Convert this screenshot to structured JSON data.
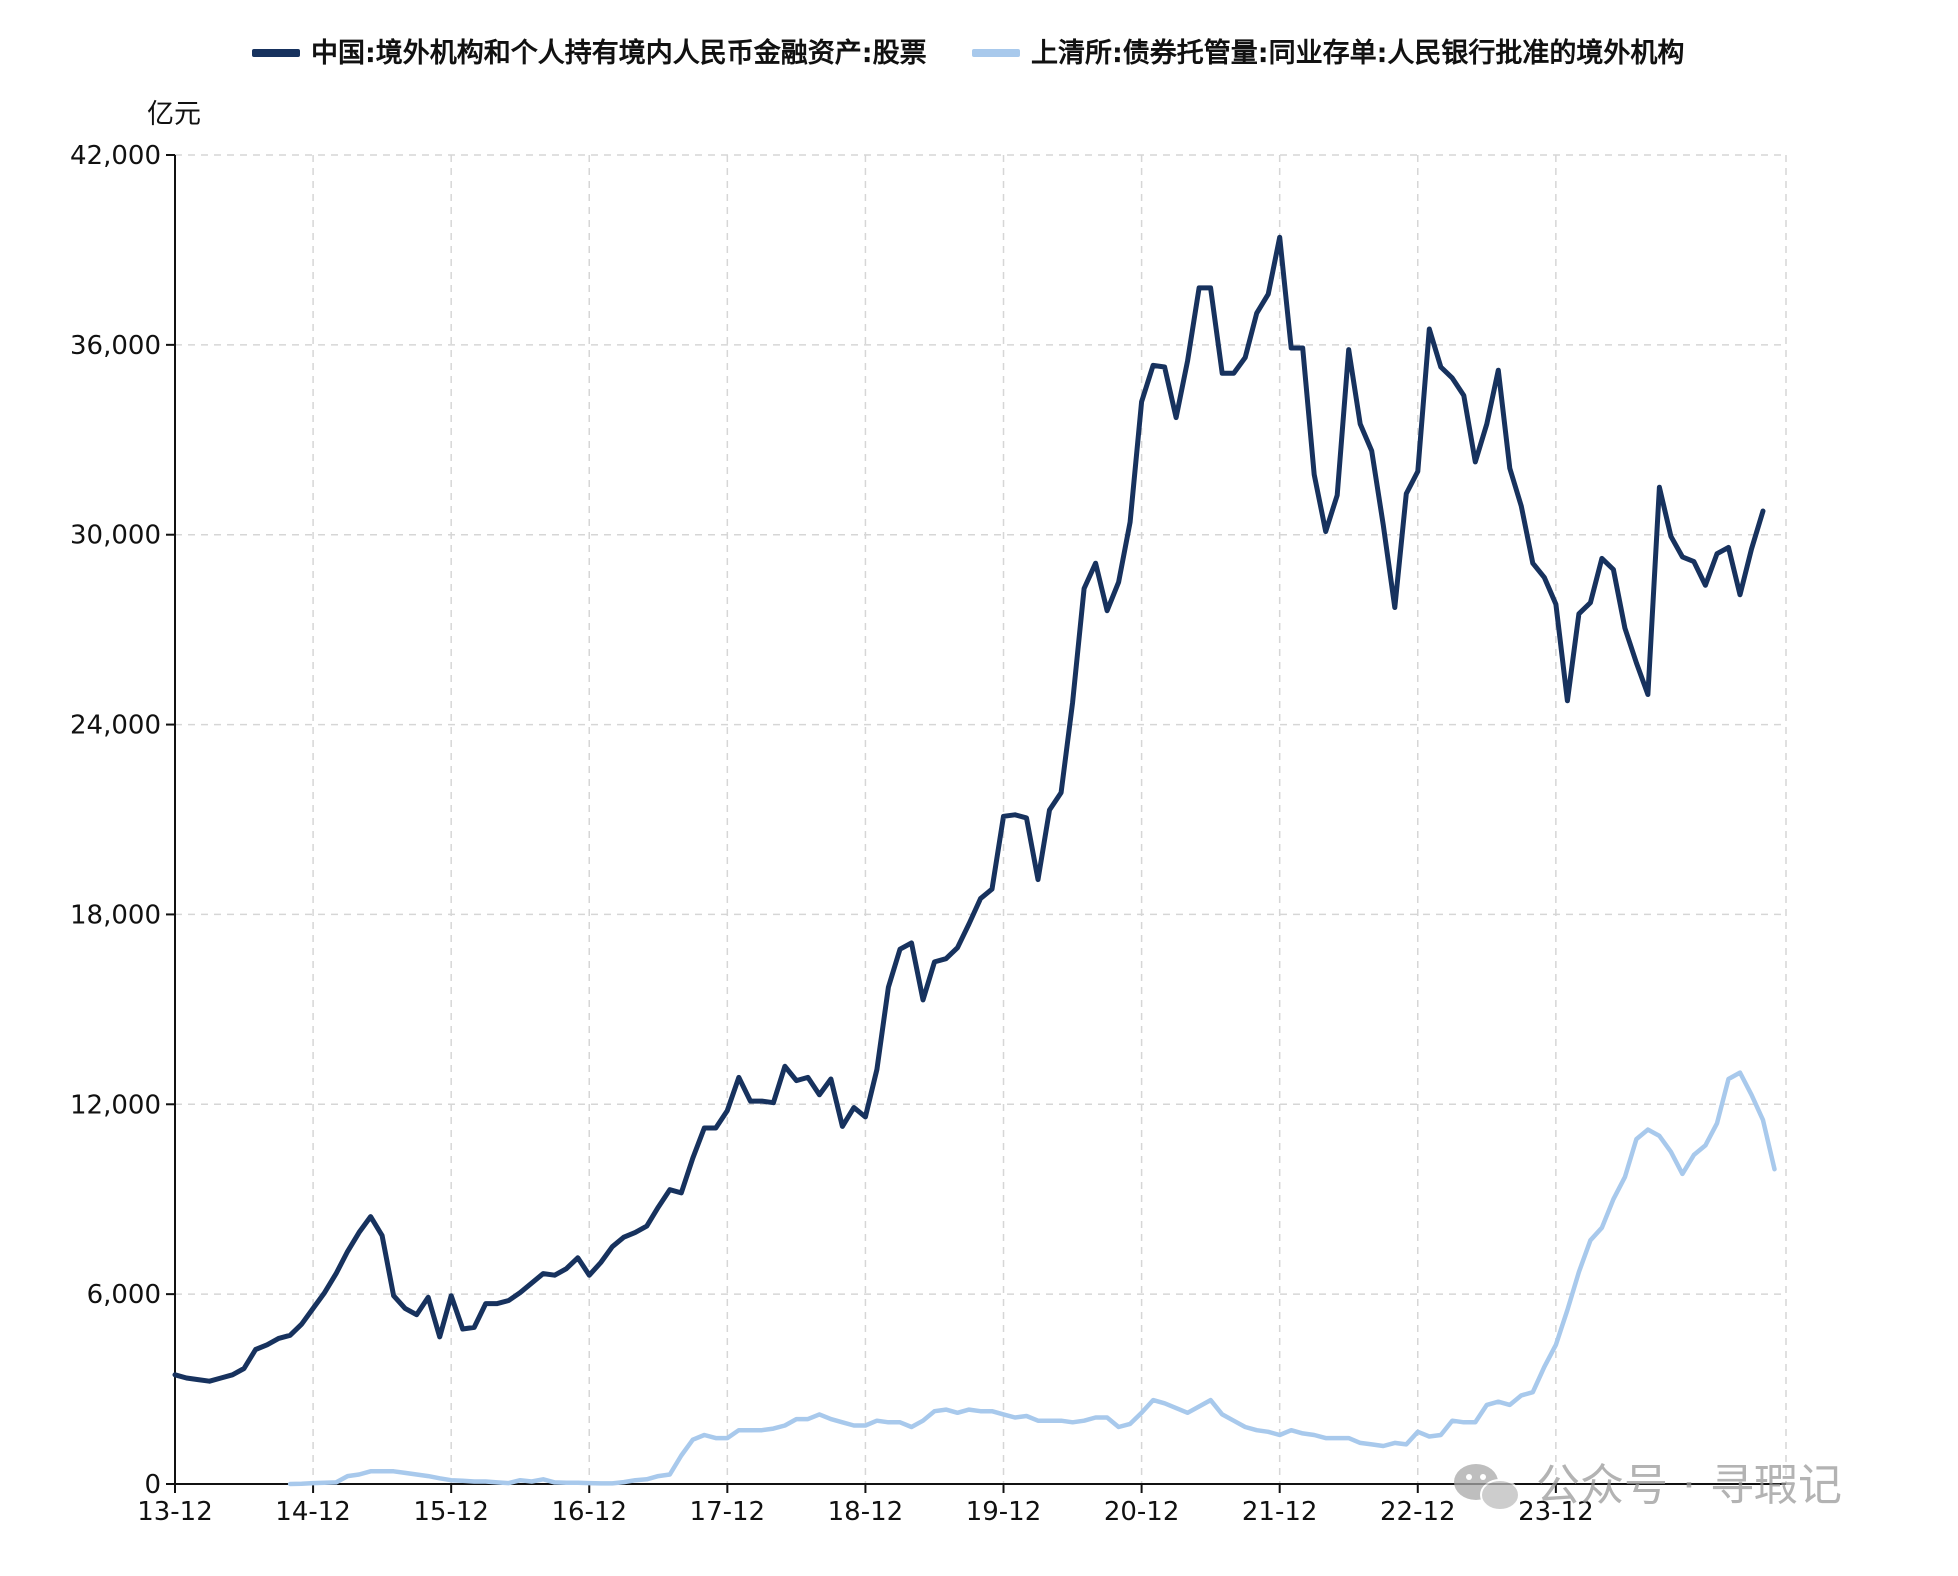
{
  "chart_data": {
    "type": "line",
    "ylabel": "亿元",
    "ylim": [
      0,
      42000
    ],
    "y_ticks": [
      0,
      6000,
      12000,
      18000,
      24000,
      30000,
      36000,
      42000
    ],
    "y_tick_labels": [
      "0",
      "6,000",
      "12,000",
      "18,000",
      "24,000",
      "30,000",
      "36,000",
      "42,000"
    ],
    "x_ticks": [
      "2013-12",
      "2014-12",
      "2015-12",
      "2016-12",
      "2017-12",
      "2018-12",
      "2019-12",
      "2020-12",
      "2021-12",
      "2022-12",
      "2023-12"
    ],
    "x_tick_labels": [
      "13-12",
      "14-12",
      "15-12",
      "16-12",
      "17-12",
      "18-12",
      "19-12",
      "20-12",
      "21-12",
      "22-12",
      "23-12"
    ],
    "x_range": [
      "2013-12",
      "2025-08"
    ],
    "grid": true,
    "legend_position": "top",
    "series": [
      {
        "name": "中国:境外机构和个人持有境内人民币金融资产:股票",
        "color": "#17325e",
        "points": [
          [
            "2013-12",
            3450
          ],
          [
            "2014-01",
            3350
          ],
          [
            "2014-02",
            3300
          ],
          [
            "2014-03",
            3250
          ],
          [
            "2014-04",
            3350
          ],
          [
            "2014-05",
            3450
          ],
          [
            "2014-06",
            3650
          ],
          [
            "2014-07",
            4250
          ],
          [
            "2014-08",
            4400
          ],
          [
            "2014-09",
            4600
          ],
          [
            "2014-10",
            4700
          ],
          [
            "2014-11",
            5050
          ],
          [
            "2014-12",
            5550
          ],
          [
            "2015-01",
            6050
          ],
          [
            "2015-02",
            6650
          ],
          [
            "2015-03",
            7350
          ],
          [
            "2015-04",
            7950
          ],
          [
            "2015-05",
            8450
          ],
          [
            "2015-06",
            7850
          ],
          [
            "2015-07",
            5950
          ],
          [
            "2015-08",
            5550
          ],
          [
            "2015-09",
            5350
          ],
          [
            "2015-10",
            5900
          ],
          [
            "2015-11",
            4650
          ],
          [
            "2015-12",
            5950
          ],
          [
            "2016-01",
            4900
          ],
          [
            "2016-02",
            4950
          ],
          [
            "2016-03",
            5700
          ],
          [
            "2016-04",
            5700
          ],
          [
            "2016-05",
            5800
          ],
          [
            "2016-06",
            6050
          ],
          [
            "2016-07",
            6350
          ],
          [
            "2016-08",
            6650
          ],
          [
            "2016-09",
            6600
          ],
          [
            "2016-10",
            6800
          ],
          [
            "2016-11",
            7150
          ],
          [
            "2016-12",
            6600
          ],
          [
            "2017-01",
            7000
          ],
          [
            "2017-02",
            7500
          ],
          [
            "2017-03",
            7800
          ],
          [
            "2017-04",
            7950
          ],
          [
            "2017-05",
            8150
          ],
          [
            "2017-06",
            8750
          ],
          [
            "2017-07",
            9300
          ],
          [
            "2017-08",
            9200
          ],
          [
            "2017-09",
            10300
          ],
          [
            "2017-10",
            11250
          ],
          [
            "2017-11",
            11250
          ],
          [
            "2017-12",
            11800
          ],
          [
            "2018-01",
            12850
          ],
          [
            "2018-02",
            12100
          ],
          [
            "2018-03",
            12100
          ],
          [
            "2018-04",
            12050
          ],
          [
            "2018-05",
            13200
          ],
          [
            "2018-06",
            12750
          ],
          [
            "2018-07",
            12850
          ],
          [
            "2018-08",
            12300
          ],
          [
            "2018-09",
            12800
          ],
          [
            "2018-10",
            11300
          ],
          [
            "2018-11",
            11900
          ],
          [
            "2018-12",
            11600
          ],
          [
            "2019-01",
            13100
          ],
          [
            "2019-02",
            15700
          ],
          [
            "2019-03",
            16900
          ],
          [
            "2019-04",
            17100
          ],
          [
            "2019-05",
            15300
          ],
          [
            "2019-06",
            16500
          ],
          [
            "2019-07",
            16600
          ],
          [
            "2019-08",
            16950
          ],
          [
            "2019-09",
            17700
          ],
          [
            "2019-10",
            18500
          ],
          [
            "2019-11",
            18800
          ],
          [
            "2019-12",
            21100
          ],
          [
            "2020-01",
            21150
          ],
          [
            "2020-02",
            21050
          ],
          [
            "2020-03",
            19100
          ],
          [
            "2020-04",
            21300
          ],
          [
            "2020-05",
            21850
          ],
          [
            "2020-06",
            24700
          ],
          [
            "2020-07",
            28300
          ],
          [
            "2020-08",
            29100
          ],
          [
            "2020-09",
            27600
          ],
          [
            "2020-10",
            28500
          ],
          [
            "2020-11",
            30400
          ],
          [
            "2020-12",
            34200
          ],
          [
            "2021-01",
            35350
          ],
          [
            "2021-02",
            35300
          ],
          [
            "2021-03",
            33700
          ],
          [
            "2021-04",
            35500
          ],
          [
            "2021-05",
            37800
          ],
          [
            "2021-06",
            37800
          ],
          [
            "2021-07",
            35100
          ],
          [
            "2021-08",
            35100
          ],
          [
            "2021-09",
            35600
          ],
          [
            "2021-10",
            37000
          ],
          [
            "2021-11",
            37600
          ],
          [
            "2021-12",
            39400
          ],
          [
            "2022-01",
            35900
          ],
          [
            "2022-02",
            35900
          ],
          [
            "2022-03",
            31900
          ],
          [
            "2022-04",
            30100
          ],
          [
            "2022-05",
            31250
          ],
          [
            "2022-06",
            35850
          ],
          [
            "2022-07",
            33500
          ],
          [
            "2022-08",
            32650
          ],
          [
            "2022-09",
            30300
          ],
          [
            "2022-10",
            27700
          ],
          [
            "2022-11",
            31300
          ],
          [
            "2022-12",
            32000
          ],
          [
            "2023-01",
            36500
          ],
          [
            "2023-02",
            35300
          ],
          [
            "2023-03",
            34950
          ],
          [
            "2023-04",
            34400
          ],
          [
            "2023-05",
            32300
          ],
          [
            "2023-06",
            33500
          ],
          [
            "2023-07",
            35200
          ],
          [
            "2023-08",
            32100
          ],
          [
            "2023-09",
            30900
          ],
          [
            "2023-10",
            29100
          ],
          [
            "2023-11",
            28650
          ],
          [
            "2023-12",
            27800
          ],
          [
            "2024-01",
            24750
          ],
          [
            "2024-02",
            27500
          ],
          [
            "2024-03",
            27850
          ],
          [
            "2024-04",
            29250
          ],
          [
            "2024-05",
            28900
          ],
          [
            "2024-06",
            27050
          ],
          [
            "2024-07",
            25950
          ],
          [
            "2024-08",
            24950
          ],
          [
            "2024-09",
            31500
          ],
          [
            "2024-10",
            29950
          ],
          [
            "2024-11",
            29300
          ],
          [
            "2024-12",
            29150
          ],
          [
            "2025-01",
            28400
          ],
          [
            "2025-02",
            29400
          ],
          [
            "2025-03",
            29600
          ],
          [
            "2025-04",
            28100
          ],
          [
            "2025-05",
            29550
          ],
          [
            "2025-06",
            30750
          ]
        ]
      },
      {
        "name": "上清所:债券托管量:同业存单:人民银行批准的境外机构",
        "color": "#a8c9ec",
        "points": [
          [
            "2014-10",
            0
          ],
          [
            "2014-11",
            10
          ],
          [
            "2014-12",
            30
          ],
          [
            "2015-01",
            40
          ],
          [
            "2015-02",
            50
          ],
          [
            "2015-03",
            250
          ],
          [
            "2015-04",
            300
          ],
          [
            "2015-05",
            400
          ],
          [
            "2015-06",
            400
          ],
          [
            "2015-07",
            400
          ],
          [
            "2015-08",
            350
          ],
          [
            "2015-09",
            300
          ],
          [
            "2015-10",
            250
          ],
          [
            "2015-11",
            180
          ],
          [
            "2015-12",
            120
          ],
          [
            "2016-01",
            100
          ],
          [
            "2016-02",
            80
          ],
          [
            "2016-03",
            80
          ],
          [
            "2016-04",
            50
          ],
          [
            "2016-05",
            30
          ],
          [
            "2016-06",
            120
          ],
          [
            "2016-07",
            80
          ],
          [
            "2016-08",
            150
          ],
          [
            "2016-09",
            50
          ],
          [
            "2016-10",
            40
          ],
          [
            "2016-11",
            40
          ],
          [
            "2016-12",
            30
          ],
          [
            "2017-01",
            20
          ],
          [
            "2017-02",
            20
          ],
          [
            "2017-03",
            60
          ],
          [
            "2017-04",
            120
          ],
          [
            "2017-05",
            150
          ],
          [
            "2017-06",
            250
          ],
          [
            "2017-07",
            300
          ],
          [
            "2017-08",
            900
          ],
          [
            "2017-09",
            1400
          ],
          [
            "2017-10",
            1550
          ],
          [
            "2017-11",
            1450
          ],
          [
            "2017-12",
            1450
          ],
          [
            "2018-01",
            1700
          ],
          [
            "2018-02",
            1700
          ],
          [
            "2018-03",
            1700
          ],
          [
            "2018-04",
            1750
          ],
          [
            "2018-05",
            1850
          ],
          [
            "2018-06",
            2050
          ],
          [
            "2018-07",
            2050
          ],
          [
            "2018-08",
            2200
          ],
          [
            "2018-09",
            2050
          ],
          [
            "2018-10",
            1950
          ],
          [
            "2018-11",
            1850
          ],
          [
            "2018-12",
            1850
          ],
          [
            "2019-01",
            2000
          ],
          [
            "2019-02",
            1950
          ],
          [
            "2019-03",
            1950
          ],
          [
            "2019-04",
            1800
          ],
          [
            "2019-05",
            2000
          ],
          [
            "2019-06",
            2300
          ],
          [
            "2019-07",
            2350
          ],
          [
            "2019-08",
            2250
          ],
          [
            "2019-09",
            2350
          ],
          [
            "2019-10",
            2300
          ],
          [
            "2019-11",
            2300
          ],
          [
            "2019-12",
            2200
          ],
          [
            "2020-01",
            2100
          ],
          [
            "2020-02",
            2150
          ],
          [
            "2020-03",
            2000
          ],
          [
            "2020-04",
            2000
          ],
          [
            "2020-05",
            2000
          ],
          [
            "2020-06",
            1950
          ],
          [
            "2020-07",
            2000
          ],
          [
            "2020-08",
            2100
          ],
          [
            "2020-09",
            2100
          ],
          [
            "2020-10",
            1800
          ],
          [
            "2020-11",
            1900
          ],
          [
            "2020-12",
            2250
          ],
          [
            "2021-01",
            2650
          ],
          [
            "2021-02",
            2550
          ],
          [
            "2021-03",
            2400
          ],
          [
            "2021-04",
            2250
          ],
          [
            "2021-05",
            2450
          ],
          [
            "2021-06",
            2650
          ],
          [
            "2021-07",
            2200
          ],
          [
            "2021-08",
            2000
          ],
          [
            "2021-09",
            1800
          ],
          [
            "2021-10",
            1700
          ],
          [
            "2021-11",
            1650
          ],
          [
            "2021-12",
            1550
          ],
          [
            "2022-01",
            1700
          ],
          [
            "2022-02",
            1600
          ],
          [
            "2022-03",
            1550
          ],
          [
            "2022-04",
            1450
          ],
          [
            "2022-05",
            1450
          ],
          [
            "2022-06",
            1450
          ],
          [
            "2022-07",
            1300
          ],
          [
            "2022-08",
            1250
          ],
          [
            "2022-09",
            1200
          ],
          [
            "2022-10",
            1300
          ],
          [
            "2022-11",
            1250
          ],
          [
            "2022-12",
            1650
          ],
          [
            "2023-01",
            1500
          ],
          [
            "2023-02",
            1550
          ],
          [
            "2023-03",
            2000
          ],
          [
            "2023-04",
            1950
          ],
          [
            "2023-05",
            1950
          ],
          [
            "2023-06",
            2500
          ],
          [
            "2023-07",
            2600
          ],
          [
            "2023-08",
            2500
          ],
          [
            "2023-09",
            2800
          ],
          [
            "2023-10",
            2900
          ],
          [
            "2023-11",
            3700
          ],
          [
            "2023-12",
            4400
          ],
          [
            "2024-01",
            5500
          ],
          [
            "2024-02",
            6700
          ],
          [
            "2024-03",
            7700
          ],
          [
            "2024-04",
            8100
          ],
          [
            "2024-05",
            9000
          ],
          [
            "2024-06",
            9700
          ],
          [
            "2024-07",
            10900
          ],
          [
            "2024-08",
            11200
          ],
          [
            "2024-09",
            11000
          ],
          [
            "2024-10",
            10500
          ],
          [
            "2024-11",
            9800
          ],
          [
            "2024-12",
            10400
          ],
          [
            "2025-01",
            10700
          ],
          [
            "2025-02",
            11400
          ],
          [
            "2025-03",
            12800
          ],
          [
            "2025-04",
            13000
          ],
          [
            "2025-05",
            12300
          ],
          [
            "2025-06",
            11500
          ],
          [
            "2025-07",
            9950
          ]
        ]
      }
    ]
  },
  "watermark": {
    "icon": "wechat-icon",
    "text": "公众号 · 寻瑕记"
  }
}
